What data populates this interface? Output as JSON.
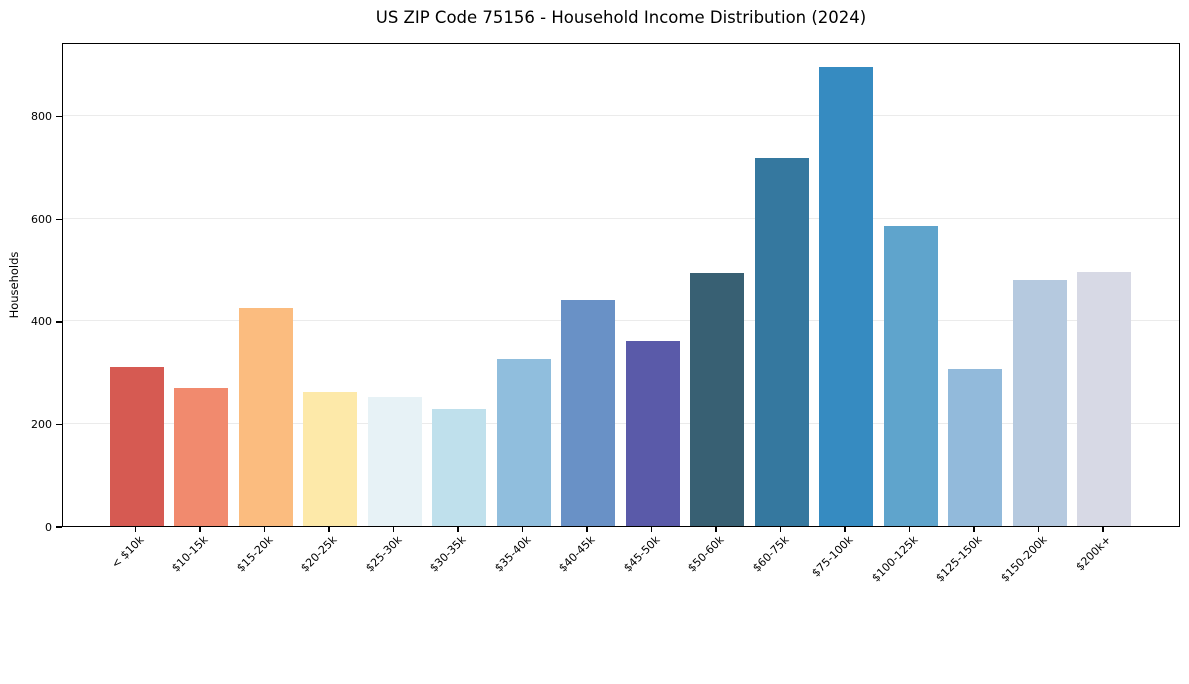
{
  "chart_data": {
    "type": "bar",
    "title": "US ZIP Code 75156 - Household Income Distribution (2024)",
    "xlabel": "",
    "ylabel": "Households",
    "categories": [
      "< $10k",
      "$10-15k",
      "$15-20k",
      "$20-25k",
      "$25-30k",
      "$30-35k",
      "$35-40k",
      "$40-45k",
      "$45-50k",
      "$50-60k",
      "$60-75k",
      "$75-100k",
      "$100-125k",
      "$125-150k",
      "$150-200k",
      "$200k+"
    ],
    "values": [
      310,
      269,
      425,
      261,
      251,
      229,
      326,
      440,
      361,
      493,
      718,
      895,
      586,
      306,
      479,
      495
    ],
    "bar_colors": [
      "#d65a52",
      "#f18a6e",
      "#fbbc7f",
      "#fde9a9",
      "#e7f2f6",
      "#bfe0ec",
      "#90bedd",
      "#6991c6",
      "#5a5aa9",
      "#386073",
      "#35789f",
      "#368bc1",
      "#5fa4cc",
      "#92badb",
      "#b5c9df",
      "#d7d9e5"
    ],
    "yticks": [
      0,
      200,
      400,
      600,
      800
    ],
    "ylim": [
      0,
      944
    ],
    "grid": "horizontal",
    "legend": "none"
  },
  "colors": {
    "background": "#ffffff",
    "spine": "#000000",
    "grid": "#ebebeb",
    "text": "#000000"
  }
}
